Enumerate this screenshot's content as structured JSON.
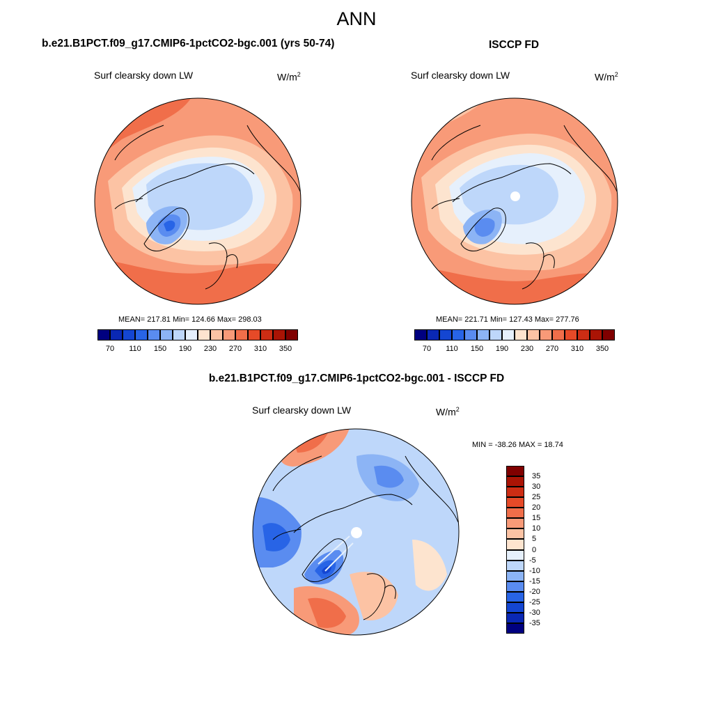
{
  "figure": {
    "title": "ANN"
  },
  "panels": [
    {
      "title": "b.e21.B1PCT.f09_g17.CMIP6-1pctCO2-bgc.001 (yrs 50-74)",
      "variable": "Surf clearsky down LW",
      "units": "W/m",
      "units_exponent": "2",
      "stats": "MEAN= 217.81  Min= 124.66  Max= 298.03"
    },
    {
      "title": "ISCCP FD",
      "variable": "Surf clearsky down LW",
      "units": "W/m",
      "units_exponent": "2",
      "stats": "MEAN= 221.71  Min= 127.43  Max= 277.76"
    },
    {
      "title": "b.e21.B1PCT.f09_g17.CMIP6-1pctCO2-bgc.001 - ISCCP FD",
      "variable": "Surf clearsky down LW",
      "units": "W/m",
      "units_exponent": "2",
      "stats": "MIN = -38.26 MAX =  18.74"
    }
  ],
  "colorbar_abs": {
    "tick_labels": [
      "70",
      "110",
      "150",
      "190",
      "230",
      "270",
      "310",
      "350"
    ],
    "colors": [
      "#000080",
      "#0a28b4",
      "#1446d2",
      "#2864e6",
      "#5a8cf0",
      "#8cb4f5",
      "#bed7fa",
      "#e6f0fc",
      "#fde4cf",
      "#fcc3a4",
      "#f89a78",
      "#f06e4a",
      "#e64a28",
      "#cd2d14",
      "#aa1405",
      "#800000"
    ]
  },
  "colorbar_diff": {
    "tick_labels": [
      "35",
      "30",
      "25",
      "20",
      "15",
      "10",
      "5",
      "0",
      "-5",
      "-10",
      "-15",
      "-20",
      "-25",
      "-30",
      "-35"
    ],
    "colors": [
      "#800000",
      "#aa1405",
      "#cd2d14",
      "#e64a28",
      "#f06e4a",
      "#f89a78",
      "#fcc3a4",
      "#fde4cf",
      "#e6f0fc",
      "#bed7fa",
      "#8cb4f5",
      "#5a8cf0",
      "#2864e6",
      "#1446d2",
      "#0a28b4",
      "#000080"
    ]
  },
  "chart_data": [
    {
      "type": "heatmap",
      "title": "b.e21.B1PCT.f09_g17.CMIP6-1pctCO2-bgc.001 (yrs 50-74)",
      "variable": "Surf clearsky down LW",
      "units": "W/m^2",
      "projection": "north polar stereographic",
      "mean": 217.81,
      "min": 124.66,
      "max": 298.03,
      "levels": [
        70,
        90,
        110,
        130,
        150,
        170,
        190,
        210,
        230,
        250,
        270,
        290,
        310,
        330,
        350
      ]
    },
    {
      "type": "heatmap",
      "title": "ISCCP FD",
      "variable": "Surf clearsky down LW",
      "units": "W/m^2",
      "projection": "north polar stereographic",
      "mean": 221.71,
      "min": 127.43,
      "max": 277.76,
      "levels": [
        70,
        90,
        110,
        130,
        150,
        170,
        190,
        210,
        230,
        250,
        270,
        290,
        310,
        330,
        350
      ]
    },
    {
      "type": "heatmap",
      "title": "b.e21.B1PCT.f09_g17.CMIP6-1pctCO2-bgc.001 - ISCCP FD",
      "variable": "Surf clearsky down LW",
      "units": "W/m^2",
      "projection": "north polar stereographic",
      "min": -38.26,
      "max": 18.74,
      "levels": [
        -35,
        -30,
        -25,
        -20,
        -15,
        -10,
        -5,
        0,
        5,
        10,
        15,
        20,
        25,
        30,
        35
      ]
    }
  ]
}
